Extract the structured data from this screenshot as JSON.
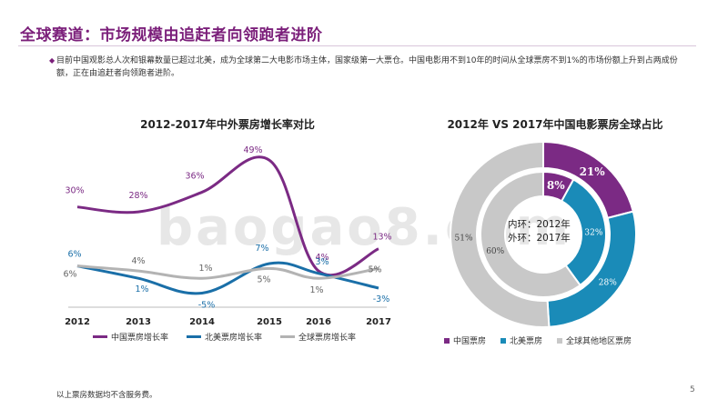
{
  "page": {
    "title": "全球赛道：市场规模由追赶者向领跑者进阶",
    "bullet": "目前中国观影总人次和银幕数量已超过北美，成为全球第二大电影市场主体，国家级第一大票仓。中国电影用不到10年的时间从全球票房不到1%的市场份额上升到占两成份额，正在由追赶者向领跑者进阶。",
    "footnote": "以上票房数据均不含服务费。",
    "page_number": "5",
    "watermark": "baogao8.com"
  },
  "chart_data": [
    {
      "type": "line",
      "title": "2012-2017年中外票房增长率对比",
      "categories": [
        "2012",
        "2013",
        "2014",
        "2015",
        "2016",
        "2017"
      ],
      "ylim": [
        -10,
        55
      ],
      "series": [
        {
          "name": "中国票房增长率",
          "color": "#7b2a84",
          "values": [
            30,
            28,
            36,
            49,
            4,
            13
          ],
          "labels": [
            "30%",
            "28%",
            "36%",
            "49%",
            "4%",
            "13%"
          ]
        },
        {
          "name": "北美票房增长率",
          "color": "#1a6fa8",
          "values": [
            6,
            1,
            -5,
            7,
            3,
            -3
          ],
          "labels": [
            "6%",
            "1%",
            "-5%",
            "7%",
            "3%",
            "-3%"
          ]
        },
        {
          "name": "全球票房增长率",
          "color": "#b3b3b3",
          "values": [
            6,
            4,
            1,
            5,
            1,
            5
          ],
          "labels": [
            "6%",
            "4%",
            "1%",
            "5%",
            "1%",
            "5%"
          ]
        }
      ]
    },
    {
      "type": "pie",
      "title": "2012年 VS 2017年中国电影票房全球占比",
      "center_text": [
        "内环：2012年",
        "外环：2017年"
      ],
      "categories": [
        "中国票房",
        "北美票房",
        "全球其他地区票房"
      ],
      "colors": [
        "#7b2a84",
        "#1a8bb8",
        "#c8c8c8"
      ],
      "rings": [
        {
          "name": "2012年",
          "values": [
            8,
            32,
            60
          ],
          "labels": [
            "8%",
            "32%",
            "60%"
          ]
        },
        {
          "name": "2017年",
          "values": [
            21,
            28,
            51
          ],
          "labels": [
            "21%",
            "28%",
            "51%"
          ]
        }
      ]
    }
  ]
}
